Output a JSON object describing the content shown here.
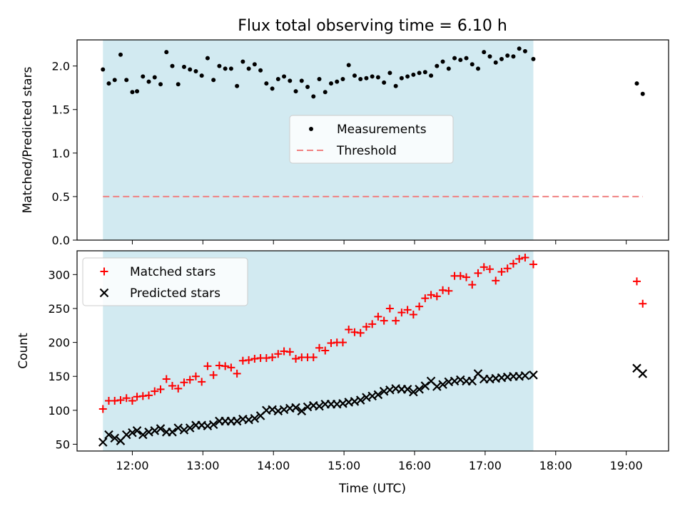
{
  "chart_data": {
    "type": "scatter",
    "title": "Flux total observing time = 6.10 h",
    "xlabel": "Time (UTC)",
    "x_ticks": [
      "12:00",
      "13:00",
      "14:00",
      "15:00",
      "16:00",
      "17:00",
      "18:00",
      "19:00"
    ],
    "xlim": [
      "11:13",
      "19:36"
    ],
    "shaded_span": [
      "11:35",
      "17:41"
    ],
    "shade_color": "#add8e6",
    "top_panel": {
      "ylabel": "Matched/Predicted stars",
      "ylim": [
        0,
        2.3
      ],
      "y_ticks": [
        "0.0",
        "0.5",
        "1.0",
        "1.5",
        "2.0"
      ],
      "legend_position": "center",
      "series": [
        {
          "name": "Measurements",
          "marker": "dot",
          "color": "#000000",
          "points": [
            [
              "11:35",
              1.96
            ],
            [
              "11:40",
              1.8
            ],
            [
              "11:45",
              1.84
            ],
            [
              "11:50",
              2.13
            ],
            [
              "11:55",
              1.84
            ],
            [
              "12:00",
              1.7
            ],
            [
              "12:04",
              1.71
            ],
            [
              "12:09",
              1.88
            ],
            [
              "12:14",
              1.82
            ],
            [
              "12:19",
              1.87
            ],
            [
              "12:24",
              1.79
            ],
            [
              "12:29",
              2.16
            ],
            [
              "12:34",
              2.0
            ],
            [
              "12:39",
              1.79
            ],
            [
              "12:44",
              1.99
            ],
            [
              "12:49",
              1.96
            ],
            [
              "12:54",
              1.94
            ],
            [
              "12:59",
              1.89
            ],
            [
              "13:04",
              2.09
            ],
            [
              "13:09",
              1.84
            ],
            [
              "13:14",
              2.0
            ],
            [
              "13:19",
              1.97
            ],
            [
              "13:24",
              1.97
            ],
            [
              "13:29",
              1.77
            ],
            [
              "13:34",
              2.05
            ],
            [
              "13:39",
              1.97
            ],
            [
              "13:44",
              2.02
            ],
            [
              "13:49",
              1.95
            ],
            [
              "13:54",
              1.8
            ],
            [
              "13:59",
              1.74
            ],
            [
              "14:04",
              1.85
            ],
            [
              "14:09",
              1.88
            ],
            [
              "14:14",
              1.83
            ],
            [
              "14:19",
              1.71
            ],
            [
              "14:24",
              1.83
            ],
            [
              "14:29",
              1.76
            ],
            [
              "14:34",
              1.65
            ],
            [
              "14:39",
              1.85
            ],
            [
              "14:44",
              1.7
            ],
            [
              "14:49",
              1.8
            ],
            [
              "14:54",
              1.82
            ],
            [
              "14:59",
              1.85
            ],
            [
              "15:04",
              2.01
            ],
            [
              "15:09",
              1.89
            ],
            [
              "15:14",
              1.85
            ],
            [
              "15:19",
              1.86
            ],
            [
              "15:24",
              1.88
            ],
            [
              "15:29",
              1.87
            ],
            [
              "15:34",
              1.81
            ],
            [
              "15:39",
              1.92
            ],
            [
              "15:44",
              1.77
            ],
            [
              "15:49",
              1.86
            ],
            [
              "15:54",
              1.88
            ],
            [
              "15:59",
              1.9
            ],
            [
              "16:04",
              1.92
            ],
            [
              "16:09",
              1.93
            ],
            [
              "16:14",
              1.89
            ],
            [
              "16:19",
              2.0
            ],
            [
              "16:24",
              2.05
            ],
            [
              "16:29",
              1.97
            ],
            [
              "16:34",
              2.09
            ],
            [
              "16:39",
              2.07
            ],
            [
              "16:44",
              2.09
            ],
            [
              "16:49",
              2.02
            ],
            [
              "16:54",
              1.97
            ],
            [
              "16:59",
              2.16
            ],
            [
              "17:04",
              2.11
            ],
            [
              "17:09",
              2.04
            ],
            [
              "17:14",
              2.08
            ],
            [
              "17:19",
              2.12
            ],
            [
              "17:24",
              2.11
            ],
            [
              "17:29",
              2.2
            ],
            [
              "17:34",
              2.17
            ],
            [
              "17:41",
              2.08
            ],
            [
              "19:09",
              1.8
            ],
            [
              "19:14",
              1.68
            ]
          ]
        },
        {
          "name": "Threshold",
          "marker": "dashed-line",
          "color": "#f08080",
          "points": [
            [
              "11:35",
              0.5
            ],
            [
              "19:14",
              0.5
            ]
          ]
        }
      ]
    },
    "bottom_panel": {
      "ylabel": "Count",
      "ylim": [
        40,
        335
      ],
      "y_ticks": [
        "50",
        "100",
        "150",
        "200",
        "250",
        "300"
      ],
      "legend_position": "top-left",
      "series": [
        {
          "name": "Matched stars",
          "marker": "plus",
          "color": "#ff0000",
          "points": [
            [
              "11:35",
              102
            ],
            [
              "11:40",
              114
            ],
            [
              "11:45",
              114
            ],
            [
              "11:50",
              115
            ],
            [
              "11:55",
              118
            ],
            [
              "12:00",
              114
            ],
            [
              "12:04",
              120
            ],
            [
              "12:09",
              121
            ],
            [
              "12:14",
              122
            ],
            [
              "12:19",
              128
            ],
            [
              "12:24",
              131
            ],
            [
              "12:29",
              146
            ],
            [
              "12:34",
              136
            ],
            [
              "12:39",
              132
            ],
            [
              "12:44",
              141
            ],
            [
              "12:49",
              145
            ],
            [
              "12:54",
              150
            ],
            [
              "12:59",
              142
            ],
            [
              "13:04",
              165
            ],
            [
              "13:09",
              152
            ],
            [
              "13:14",
              166
            ],
            [
              "13:19",
              165
            ],
            [
              "13:24",
              163
            ],
            [
              "13:29",
              154
            ],
            [
              "13:34",
              173
            ],
            [
              "13:39",
              174
            ],
            [
              "13:44",
              176
            ],
            [
              "13:49",
              177
            ],
            [
              "13:54",
              177
            ],
            [
              "13:59",
              178
            ],
            [
              "14:04",
              183
            ],
            [
              "14:09",
              187
            ],
            [
              "14:14",
              186
            ],
            [
              "14:19",
              176
            ],
            [
              "14:24",
              178
            ],
            [
              "14:29",
              178
            ],
            [
              "14:34",
              178
            ],
            [
              "14:39",
              192
            ],
            [
              "14:44",
              188
            ],
            [
              "14:49",
              199
            ],
            [
              "14:54",
              200
            ],
            [
              "14:59",
              200
            ],
            [
              "15:04",
              219
            ],
            [
              "15:09",
              215
            ],
            [
              "15:14",
              214
            ],
            [
              "15:19",
              223
            ],
            [
              "15:24",
              227
            ],
            [
              "15:29",
              238
            ],
            [
              "15:34",
              232
            ],
            [
              "15:39",
              250
            ],
            [
              "15:44",
              232
            ],
            [
              "15:49",
              244
            ],
            [
              "15:54",
              248
            ],
            [
              "15:59",
              241
            ],
            [
              "16:04",
              253
            ],
            [
              "16:09",
              265
            ],
            [
              "16:14",
              270
            ],
            [
              "16:19",
              268
            ],
            [
              "16:24",
              277
            ],
            [
              "16:29",
              276
            ],
            [
              "16:34",
              298
            ],
            [
              "16:39",
              298
            ],
            [
              "16:44",
              296
            ],
            [
              "16:49",
              285
            ],
            [
              "16:54",
              302
            ],
            [
              "16:59",
              311
            ],
            [
              "17:04",
              308
            ],
            [
              "17:09",
              291
            ],
            [
              "17:14",
              304
            ],
            [
              "17:19",
              309
            ],
            [
              "17:24",
              316
            ],
            [
              "17:29",
              323
            ],
            [
              "17:34",
              325
            ],
            [
              "17:41",
              315
            ],
            [
              "19:09",
              290
            ],
            [
              "19:14",
              257
            ]
          ]
        },
        {
          "name": "Predicted stars",
          "marker": "x",
          "color": "#000000",
          "points": [
            [
              "11:35",
              53
            ],
            [
              "11:40",
              64
            ],
            [
              "11:45",
              59
            ],
            [
              "11:50",
              55
            ],
            [
              "11:55",
              64
            ],
            [
              "12:00",
              67
            ],
            [
              "12:04",
              70
            ],
            [
              "12:09",
              64
            ],
            [
              "12:14",
              68
            ],
            [
              "12:19",
              70
            ],
            [
              "12:24",
              73
            ],
            [
              "12:29",
              68
            ],
            [
              "12:34",
              68
            ],
            [
              "12:39",
              74
            ],
            [
              "12:44",
              71
            ],
            [
              "12:49",
              74
            ],
            [
              "12:54",
              78
            ],
            [
              "12:59",
              78
            ],
            [
              "13:04",
              77
            ],
            [
              "13:09",
              79
            ],
            [
              "13:14",
              84
            ],
            [
              "13:19",
              84
            ],
            [
              "13:24",
              84
            ],
            [
              "13:29",
              84
            ],
            [
              "13:34",
              87
            ],
            [
              "13:39",
              86
            ],
            [
              "13:44",
              88
            ],
            [
              "13:49",
              92
            ],
            [
              "13:54",
              100
            ],
            [
              "13:59",
              101
            ],
            [
              "14:04",
              99
            ],
            [
              "14:09",
              101
            ],
            [
              "14:14",
              103
            ],
            [
              "14:19",
              104
            ],
            [
              "14:24",
              99
            ],
            [
              "14:29",
              105
            ],
            [
              "14:34",
              107
            ],
            [
              "14:39",
              106
            ],
            [
              "14:44",
              109
            ],
            [
              "14:49",
              109
            ],
            [
              "14:54",
              109
            ],
            [
              "14:59",
              110
            ],
            [
              "15:04",
              112
            ],
            [
              "15:09",
              113
            ],
            [
              "15:14",
              115
            ],
            [
              "15:19",
              119
            ],
            [
              "15:24",
              121
            ],
            [
              "15:29",
              123
            ],
            [
              "15:34",
              128
            ],
            [
              "15:39",
              130
            ],
            [
              "15:44",
              132
            ],
            [
              "15:49",
              131
            ],
            [
              "15:54",
              131
            ],
            [
              "15:59",
              127
            ],
            [
              "16:04",
              131
            ],
            [
              "16:09",
              136
            ],
            [
              "16:14",
              143
            ],
            [
              "16:19",
              135
            ],
            [
              "16:24",
              138
            ],
            [
              "16:29",
              142
            ],
            [
              "16:34",
              143
            ],
            [
              "16:39",
              145
            ],
            [
              "16:44",
              143
            ],
            [
              "16:49",
              143
            ],
            [
              "16:54",
              154
            ],
            [
              "16:59",
              146
            ],
            [
              "17:04",
              146
            ],
            [
              "17:09",
              147
            ],
            [
              "17:14",
              148
            ],
            [
              "17:19",
              149
            ],
            [
              "17:24",
              150
            ],
            [
              "17:29",
              150
            ],
            [
              "17:34",
              151
            ],
            [
              "17:41",
              152
            ],
            [
              "19:09",
              162
            ],
            [
              "19:14",
              154
            ]
          ]
        }
      ]
    }
  }
}
